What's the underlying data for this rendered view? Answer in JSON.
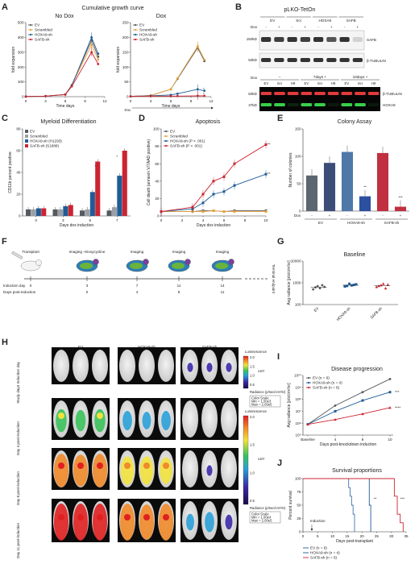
{
  "colors": {
    "ev": "#555a60",
    "scr": "#e8a23c",
    "hoxa9": "#1f5c96",
    "safb": "#cc2431",
    "purple": "#7b3fa0",
    "gray": "#9aa0a6",
    "green": "#7ac143"
  },
  "panelA": {
    "label": "A",
    "title": "Cumulative growth curve",
    "left_title": "No Dox",
    "right_title": "Dox",
    "xlabel": "Time days",
    "ylabel": "fold expansion",
    "legend": [
      "EV",
      "Scrambled",
      "HOXA9-sh",
      "SAFB-sh"
    ],
    "left_x_ticks": [
      "0",
      "3",
      "6",
      "9",
      "12"
    ],
    "left_y_ticks": [
      "0",
      "100",
      "200",
      "300",
      "400",
      "500"
    ],
    "right_x_ticks": [
      "0",
      "3",
      "6",
      "9",
      "12"
    ],
    "right_y_ticks": [
      "0",
      "50",
      "100",
      "150",
      "200",
      "250"
    ],
    "dox_label": "Dox",
    "right_stars": [
      "*",
      "*"
    ]
  },
  "chart_data": [
    {
      "type": "line",
      "panel": "A-left",
      "title": "No Dox",
      "xlabel": "Time days",
      "ylabel": "fold expansion",
      "x": [
        0,
        3,
        6,
        7,
        10,
        11
      ],
      "ylim": [
        0,
        500
      ],
      "xlim": [
        0,
        12
      ],
      "series": [
        {
          "name": "EV",
          "values": [
            1,
            4,
            15,
            80,
            380,
            270
          ]
        },
        {
          "name": "Scrambled",
          "values": [
            1,
            4,
            15,
            80,
            350,
            250
          ]
        },
        {
          "name": "HOXA9-sh",
          "values": [
            1,
            4,
            14,
            75,
            400,
            290
          ]
        },
        {
          "name": "SAFB-sh",
          "values": [
            1,
            4,
            14,
            70,
            300,
            220
          ]
        }
      ]
    },
    {
      "type": "line",
      "panel": "A-right",
      "title": "Dox",
      "xlabel": "Time days",
      "ylabel": "fold expansion",
      "x": [
        0,
        3,
        6,
        7,
        10,
        11
      ],
      "ylim": [
        0,
        250
      ],
      "xlim": [
        0,
        12
      ],
      "series": [
        {
          "name": "EV",
          "values": [
            1,
            4,
            25,
            60,
            165,
            120
          ]
        },
        {
          "name": "Scrambled",
          "values": [
            1,
            4,
            25,
            62,
            170,
            125
          ]
        },
        {
          "name": "HOXA9-sh",
          "values": [
            1,
            3,
            6,
            10,
            25,
            20
          ]
        },
        {
          "name": "SAFB-sh",
          "values": [
            1,
            2,
            2,
            2,
            3,
            3
          ]
        }
      ]
    },
    {
      "type": "bar",
      "panel": "C",
      "title": "Myeloid Differentiation",
      "xlabel": "Days dox induction",
      "ylabel": "CD11b percent positive",
      "categories": [
        "0",
        "3",
        "5",
        "7"
      ],
      "ylim": [
        0,
        80
      ],
      "series": [
        {
          "name": "EV",
          "values": [
            6,
            6,
            5,
            5
          ]
        },
        {
          "name": "Scrambled",
          "values": [
            6,
            6,
            6,
            8
          ]
        },
        {
          "name": "HOXA9-sh (H1293)",
          "values": [
            7,
            9,
            22,
            37
          ]
        },
        {
          "name": "SAFB-sh (S1888)",
          "values": [
            7,
            10,
            50,
            60
          ]
        }
      ]
    },
    {
      "type": "line",
      "panel": "D",
      "title": "Apoptosis",
      "xlabel": "Days dox induction",
      "ylabel": "Cell death (annexin V/7AAD positive)",
      "x": [
        0,
        3,
        4,
        5,
        6,
        7,
        10
      ],
      "ylim": [
        0,
        100
      ],
      "xlim": [
        0,
        10
      ],
      "series": [
        {
          "name": "EV",
          "values": [
            5,
            5,
            6,
            6,
            5,
            6,
            6
          ]
        },
        {
          "name": "Scrambled",
          "values": [
            5,
            5,
            5,
            6,
            5,
            5,
            5
          ]
        },
        {
          "name": "HOXA9-sh (P < .001)",
          "values": [
            5,
            8,
            15,
            25,
            28,
            35,
            48
          ]
        },
        {
          "name": "SAFB-sh (P < .001)",
          "values": [
            5,
            10,
            25,
            40,
            45,
            60,
            82
          ]
        }
      ]
    },
    {
      "type": "bar",
      "panel": "E",
      "title": "Colony Assay",
      "ylabel": "Number of colonies",
      "categories": [
        "EV -",
        "EV +",
        "HOXA9-sh -",
        "HOXA9-sh +",
        "SAFB-sh -",
        "SAFB-sh +"
      ],
      "values": [
        65,
        88,
        108,
        27,
        106,
        8
      ],
      "ylim": [
        0,
        150
      ]
    },
    {
      "type": "scatter",
      "panel": "G",
      "title": "Baseline",
      "ylabel": "Avg radiance [p/s/cm²/sr]",
      "categories": [
        "EV",
        "HOXA9-sh",
        "SAFB-sh"
      ],
      "log_scale": true,
      "ylim": [
        100,
        10000
      ],
      "points": [
        [
          500,
          620,
          700,
          560,
          780,
          650
        ],
        [
          680,
          720,
          900,
          760,
          800,
          850,
          700
        ],
        [
          650,
          720,
          780,
          900,
          560,
          820
        ]
      ]
    },
    {
      "type": "line",
      "panel": "I",
      "title": "Disease progression",
      "xlabel": "Days post-knockdown induction",
      "ylabel": "Avg radiance [p/s/cm²/sr]",
      "categories": [
        "Baseline",
        "4",
        "8",
        "10"
      ],
      "log_scale": true,
      "ylim": [
        100000,
        10000000000
      ],
      "series": [
        {
          "name": "EV (n = 6)",
          "values": [
            800000,
            30000000,
            400000000,
            5000000000
          ]
        },
        {
          "name": "HOXA9-sh (n = 4)",
          "values": [
            800000,
            10000000,
            80000000,
            400000000
          ]
        },
        {
          "name": "SAFB-sh (n = 6)",
          "values": [
            800000,
            2000000,
            6000000,
            20000000
          ]
        }
      ]
    },
    {
      "type": "line",
      "panel": "J",
      "title": "Survival proportions",
      "xlabel": "Days post-transplant",
      "ylabel": "Percent survival",
      "ylim": [
        0,
        100
      ],
      "xlim": [
        0,
        35
      ],
      "series": [
        {
          "name": "EV (n = 6)",
          "x": [
            0,
            15,
            15.5,
            16,
            16.5,
            17,
            17.5
          ],
          "values": [
            100,
            100,
            83,
            67,
            50,
            33,
            0
          ]
        },
        {
          "name": "HOXA9-sh (n = 4)",
          "x": [
            0,
            22,
            22.5,
            23
          ],
          "values": [
            100,
            100,
            50,
            0
          ]
        },
        {
          "name": "SAFB-sh (n = 6)",
          "x": [
            0,
            30,
            31,
            32,
            33,
            34
          ],
          "values": [
            100,
            100,
            67,
            33,
            17,
            0
          ]
        }
      ]
    }
  ],
  "panelB": {
    "label": "B",
    "title": "pLKO-TetOn",
    "groups": [
      "EV",
      "Scr",
      "HOXA9",
      "SAFB"
    ],
    "dox_label": "Dox",
    "signs": [
      "-",
      "+",
      "-",
      "+",
      "-",
      "+",
      "-",
      "+"
    ],
    "mw_top": [
      "150kD",
      "50kD"
    ],
    "bands_top": [
      "SAFB",
      "β-TUBULIN"
    ],
    "bottom_headers": [
      "–",
      "7days +",
      "10days +"
    ],
    "bottom_lanes": [
      "EV",
      "Scr",
      "H9",
      "EV",
      "Scr",
      "H9",
      "EV",
      "Scr",
      "H9"
    ],
    "mw_bottom": [
      "50kD",
      "37kD"
    ],
    "bands_bottom": [
      "β-TUBULIN",
      "HOXA9"
    ]
  },
  "panelC": {
    "label": "C",
    "title": "Myeloid Differentiation",
    "ylabel": "CD11b percent positive",
    "xlabel": "Days dox induction",
    "legend": [
      "EV",
      "Scrambled",
      "HOXA9-sh (H1293)",
      "SAFB-sh (S1888)"
    ],
    "y_ticks": [
      "0",
      "20",
      "40",
      "60",
      "80"
    ],
    "x_ticks": [
      "0",
      "3",
      "5",
      "7"
    ]
  },
  "panelD": {
    "label": "D",
    "title": "Apoptosis",
    "ylabel": "Cell death (annexin V/7AAD positive)",
    "xlabel": "Days dox induction",
    "legend": [
      "EV",
      "Scrambled",
      "HOXA9-sh (P < .001)",
      "SAFB-sh (P < .001)"
    ],
    "y_ticks": [
      "0",
      "20",
      "40",
      "60",
      "80",
      "100"
    ],
    "x_ticks": [
      "0",
      "2",
      "4",
      "6",
      "8",
      "10"
    ]
  },
  "panelE": {
    "label": "E",
    "title": "Colony Assay",
    "ylabel": "Number of colonies",
    "dox_label": "Dox",
    "signs": [
      "-",
      "+",
      "-",
      "+",
      "-",
      "+"
    ],
    "groups": [
      "EV",
      "HOXA9-sh",
      "SAFB-sh"
    ],
    "y_ticks": [
      "0",
      "50",
      "100",
      "150"
    ],
    "stars": [
      "**",
      "***"
    ]
  },
  "panelF": {
    "label": "F",
    "steps": [
      "Transplant",
      "Imaging +Doxycycline",
      "Imaging",
      "Imaging",
      "Imaging"
    ],
    "induction_label": "Induction day",
    "days_label": "Days post-induction",
    "induction_days": [
      "0",
      "3",
      "7",
      "11",
      "14"
    ],
    "post_days": [
      "0",
      "4",
      "8",
      "11"
    ],
    "endpoint": "Terminal endpoint"
  },
  "panelG": {
    "label": "G",
    "title": "Baseline",
    "ylabel": "Avg radiance [p/s/cm²/sr]",
    "y_ticks": [
      "100",
      "1000",
      "10000"
    ],
    "categories": [
      "EV",
      "HOXA9-sh",
      "SAFB-sh"
    ]
  },
  "panelH": {
    "label": "H",
    "columns": [
      "EV",
      "HOXA9-sh",
      "SAFB-sh"
    ],
    "rows": [
      "Study day3 Induction day",
      "Day 4 post-induction",
      "Day 8 post-induction",
      "Day 11 post-induction"
    ],
    "luminescence": "Luminescence",
    "radiance": "Radiance (p/sec/cm²/sr)",
    "color_scale": "Color Scale",
    "scale1_min": "Min = 1.00e3",
    "scale1_max": "Max = 2.00e5",
    "scale2_min": "Min = 1.00e4",
    "scale2_max": "Max = 2.00e5",
    "exp1": "x10⁵",
    "exp2": "x10⁵",
    "cb1_ticks": [
      "2.0",
      "1.5",
      "1.0",
      "0.5"
    ],
    "cb2_ticks": [
      "2.0",
      "1.5",
      "1.0",
      "0.5"
    ]
  },
  "panelI": {
    "label": "I",
    "title": "Disease progression",
    "ylabel": "Avg radiance [p/s/cm²/sr]",
    "xlabel": "Days post-knockdown induction",
    "legend": [
      "EV (n = 6)",
      "HOXA9-sh (n = 4)",
      "SAFB-sh (n = 6)"
    ],
    "x_ticks": [
      "Baseline",
      "4",
      "8",
      "10"
    ],
    "y_ticks": [
      "10⁵",
      "10⁶",
      "10⁷",
      "10⁸",
      "10⁹",
      "10¹⁰"
    ],
    "stars": [
      "***",
      "****"
    ]
  },
  "panelJ": {
    "label": "J",
    "title": "Survival proportions",
    "ylabel": "Percent survival",
    "xlabel": "Days post-transplant",
    "legend": [
      "EV (n = 6)",
      "HOXA9-sh (n = 4)",
      "SAFB-sh (n = 6)"
    ],
    "x_ticks": [
      "0",
      "5",
      "10",
      "15",
      "20",
      "25",
      "30",
      "35"
    ],
    "y_ticks": [
      "0",
      "25",
      "50",
      "75",
      "100"
    ],
    "induction": "Induction",
    "stars": [
      "**",
      "***"
    ]
  }
}
